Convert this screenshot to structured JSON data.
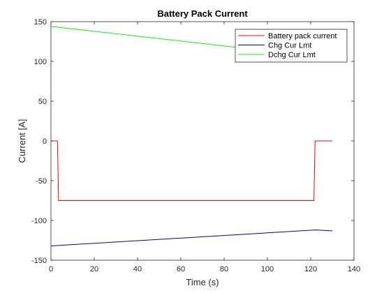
{
  "chart_data": {
    "type": "line",
    "title": "Battery Pack Current",
    "xlabel": "Time (s)",
    "ylabel": "Current [A]",
    "xlim": [
      0,
      140
    ],
    "ylim": [
      -150,
      150
    ],
    "xticks": [
      0,
      20,
      40,
      60,
      80,
      100,
      120,
      140
    ],
    "yticks": [
      -150,
      -100,
      -50,
      0,
      50,
      100,
      150
    ],
    "grid": false,
    "legend_position": "top-right",
    "series": [
      {
        "name": "Battery pack current",
        "color": "#ff0000",
        "x": [
          0,
          3,
          3.5,
          121.5,
          122,
          130
        ],
        "y": [
          0,
          0,
          -75,
          -75,
          0,
          0
        ]
      },
      {
        "name": "Chg Cur Lmt",
        "color": "#0000aa",
        "x": [
          0,
          122,
          130
        ],
        "y": [
          -132,
          -112,
          -113
        ]
      },
      {
        "name": "Dchg Cur Lmt",
        "color": "#00ff00",
        "x": [
          0,
          130
        ],
        "y": [
          144,
          104
        ]
      }
    ]
  }
}
